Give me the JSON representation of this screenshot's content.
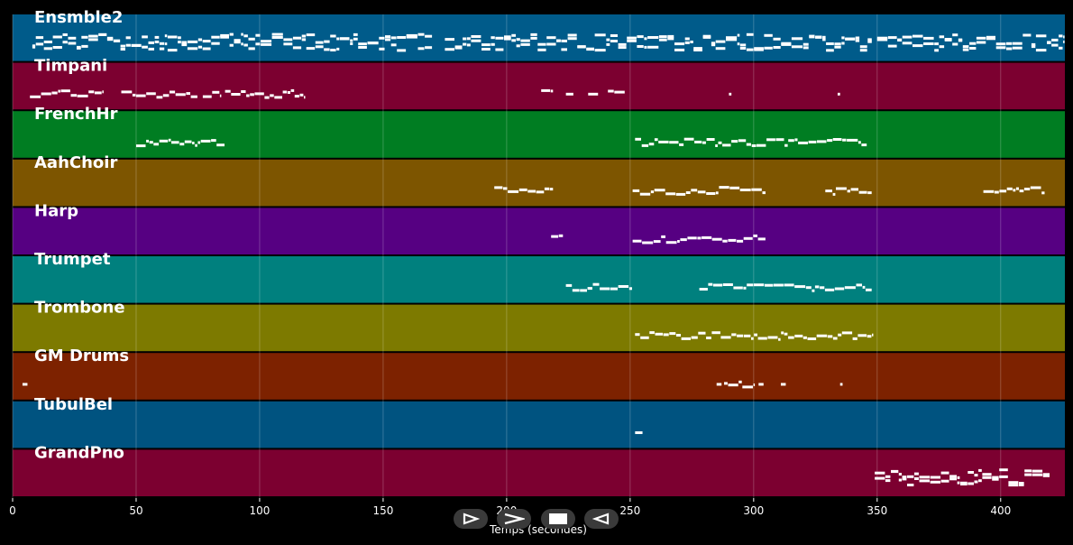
{
  "chart_data": {
    "type": "piano-roll",
    "xlabel": "Temps (secondes)",
    "xlim": [
      0,
      426
    ],
    "xticks": [
      0,
      50,
      100,
      150,
      200,
      250,
      300,
      350,
      400
    ],
    "grid": true,
    "tracks": [
      {
        "name": "Ensmble2",
        "color": "#005b8a",
        "notes": [
          [
            8,
            170
          ],
          [
            175,
            348
          ],
          [
            350,
            426
          ]
        ]
      },
      {
        "name": "Timpani",
        "color": "#7c0030",
        "notes": [
          [
            7,
            37
          ],
          [
            44,
            75
          ],
          [
            77,
            84
          ],
          [
            86,
            118
          ],
          [
            214,
            219
          ],
          [
            224,
            227
          ],
          [
            233,
            237
          ],
          [
            241,
            248
          ],
          [
            290,
            291
          ],
          [
            334,
            335
          ]
        ]
      },
      {
        "name": "FrenchHr",
        "color": "#007d22",
        "notes": [
          [
            50,
            86
          ],
          [
            252,
            346
          ]
        ]
      },
      {
        "name": "AahChoir",
        "color": "#7d5500",
        "notes": [
          [
            195,
            219
          ],
          [
            251,
            305
          ],
          [
            329,
            348
          ],
          [
            393,
            418
          ]
        ]
      },
      {
        "name": "Harp",
        "color": "#560082",
        "notes": [
          [
            218,
            223
          ],
          [
            251,
            305
          ]
        ]
      },
      {
        "name": "Trumpet",
        "color": "#00807e",
        "notes": [
          [
            224,
            251
          ],
          [
            278,
            348
          ]
        ]
      },
      {
        "name": "Trombone",
        "color": "#7d7a00",
        "notes": [
          [
            252,
            348
          ]
        ]
      },
      {
        "name": "GM Drums",
        "color": "#7d2200",
        "notes": [
          [
            4,
            6
          ],
          [
            285,
            287
          ],
          [
            288,
            300
          ],
          [
            302,
            304
          ],
          [
            311,
            313
          ],
          [
            335,
            336
          ]
        ]
      },
      {
        "name": "TubulBel",
        "color": "#005380",
        "notes": [
          [
            252,
            255
          ]
        ]
      },
      {
        "name": "GrandPno",
        "color": "#7c0030",
        "notes": [
          [
            349,
            420
          ]
        ]
      }
    ]
  },
  "controls": [
    {
      "name": "step-forward",
      "icon": "step-forward-icon"
    },
    {
      "name": "play",
      "icon": "play-icon"
    },
    {
      "name": "stop",
      "icon": "stop-icon"
    },
    {
      "name": "step-back",
      "icon": "step-back-icon"
    }
  ]
}
